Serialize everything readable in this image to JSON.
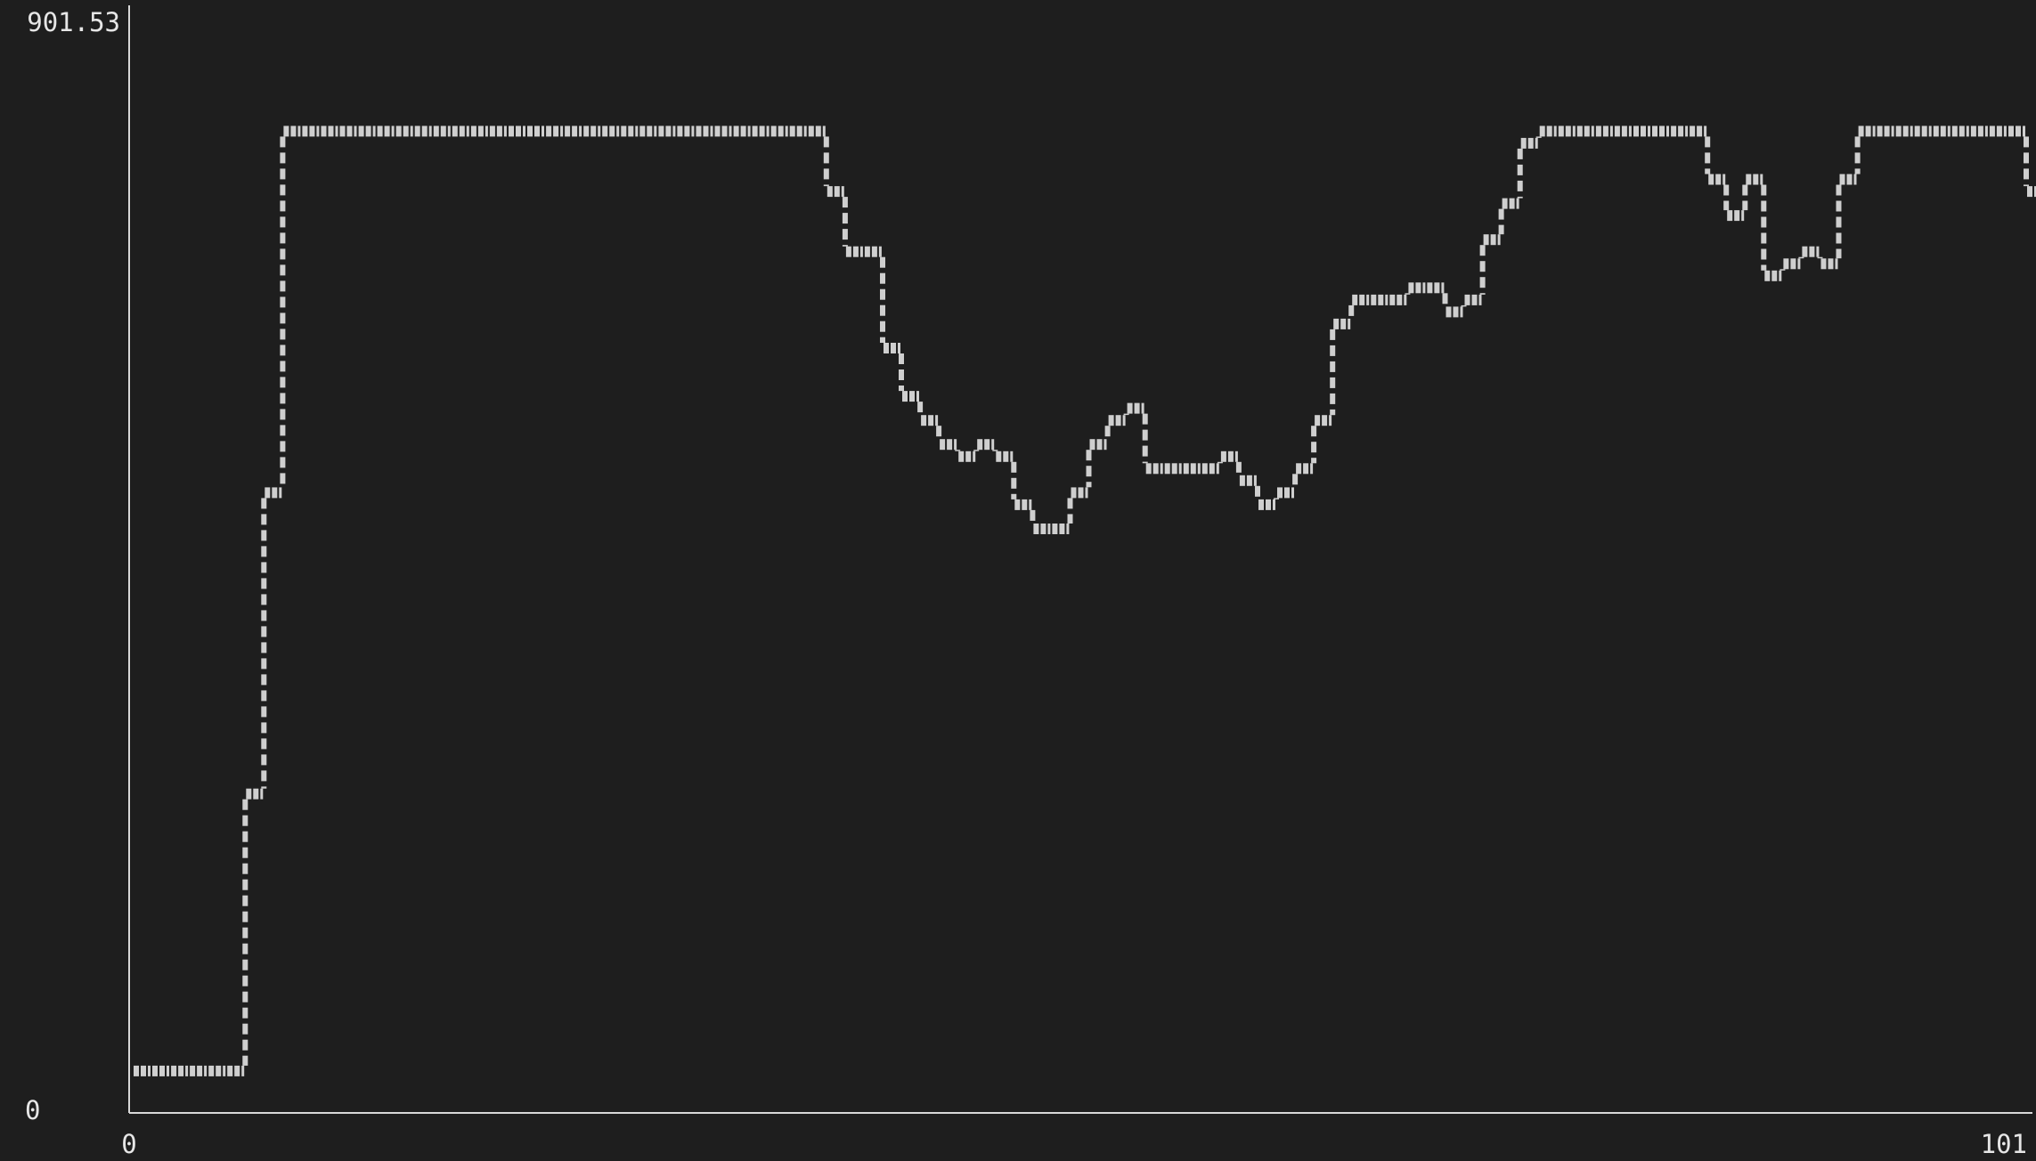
{
  "chart_data": {
    "type": "line",
    "title": "",
    "xlabel": "",
    "ylabel": "",
    "xlim": [
      0,
      101
    ],
    "ylim": [
      0,
      901.53
    ],
    "x_tick_labels": [
      "0",
      "101"
    ],
    "y_tick_labels": [
      "0",
      "901.53"
    ],
    "grid": false,
    "legend": "none",
    "colors": {
      "background": "#1e1e1e",
      "line": "#cfcfcf",
      "axis": "#d8d8d8",
      "text": "#e6e6e6"
    },
    "series": [
      {
        "x": [
          0,
          1,
          2,
          3,
          4,
          5,
          6,
          7,
          8,
          9,
          10,
          11,
          12,
          13,
          14,
          15,
          16,
          17,
          18,
          19,
          20,
          21,
          22,
          23,
          24,
          25,
          26,
          27,
          28,
          29,
          30,
          31,
          32,
          33,
          34,
          35,
          36,
          37,
          38,
          39,
          40,
          41,
          42,
          43,
          44,
          45,
          46,
          47,
          48,
          49,
          50,
          51,
          52,
          53,
          54,
          55,
          56,
          57,
          58,
          59,
          60,
          61,
          62,
          63,
          64,
          65,
          66,
          67,
          68,
          69,
          70,
          71,
          72,
          73,
          74,
          75,
          76,
          77,
          78,
          79,
          80,
          81,
          82,
          83,
          84,
          85,
          86,
          87,
          88,
          89,
          90,
          91,
          92,
          93,
          94,
          95,
          96,
          97,
          98,
          99,
          100,
          101
        ],
        "y": [
          20,
          20,
          20,
          20,
          20,
          20,
          250,
          500,
          800,
          800,
          800,
          800,
          800,
          800,
          800,
          800,
          800,
          800,
          800,
          800,
          800,
          800,
          800,
          800,
          800,
          800,
          800,
          800,
          800,
          800,
          800,
          800,
          800,
          800,
          800,
          800,
          800,
          750,
          700,
          700,
          620,
          580,
          560,
          540,
          530,
          540,
          530,
          490,
          470,
          470,
          500,
          540,
          560,
          570,
          520,
          520,
          520,
          520,
          530,
          510,
          490,
          500,
          520,
          560,
          640,
          660,
          660,
          660,
          670,
          670,
          650,
          660,
          710,
          740,
          790,
          800,
          800,
          800,
          800,
          800,
          800,
          800,
          800,
          800,
          760,
          730,
          760,
          680,
          690,
          700,
          690,
          760,
          800,
          800,
          800,
          800,
          800,
          800,
          800,
          800,
          800,
          750
        ]
      }
    ]
  }
}
